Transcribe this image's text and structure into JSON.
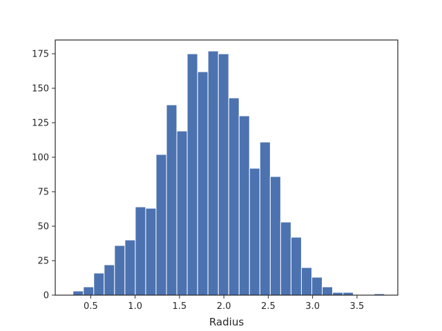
{
  "chart_data": {
    "type": "bar",
    "title": "",
    "xlabel": "Radius",
    "ylabel": "",
    "bar_color": "#4c72b0",
    "edge_color": "#ffffff",
    "bin_start": 0.3,
    "bin_width": 0.117,
    "values": [
      3,
      6,
      16,
      22,
      36,
      40,
      64,
      63,
      102,
      138,
      119,
      175,
      162,
      177,
      175,
      143,
      130,
      92,
      111,
      86,
      53,
      42,
      20,
      13,
      6,
      2,
      2,
      0,
      0,
      1
    ],
    "xlim": [
      0.1,
      3.96
    ],
    "ylim": [
      0,
      185
    ],
    "xticks": [
      0.5,
      1.0,
      1.5,
      2.0,
      2.5,
      3.0,
      3.5
    ],
    "xtick_labels": [
      "0.5",
      "1.0",
      "1.5",
      "2.0",
      "2.5",
      "3.0",
      "3.5"
    ],
    "yticks": [
      0,
      25,
      50,
      75,
      100,
      125,
      150,
      175
    ],
    "ytick_labels": [
      "0",
      "25",
      "50",
      "75",
      "100",
      "125",
      "150",
      "175"
    ],
    "grid": false
  }
}
